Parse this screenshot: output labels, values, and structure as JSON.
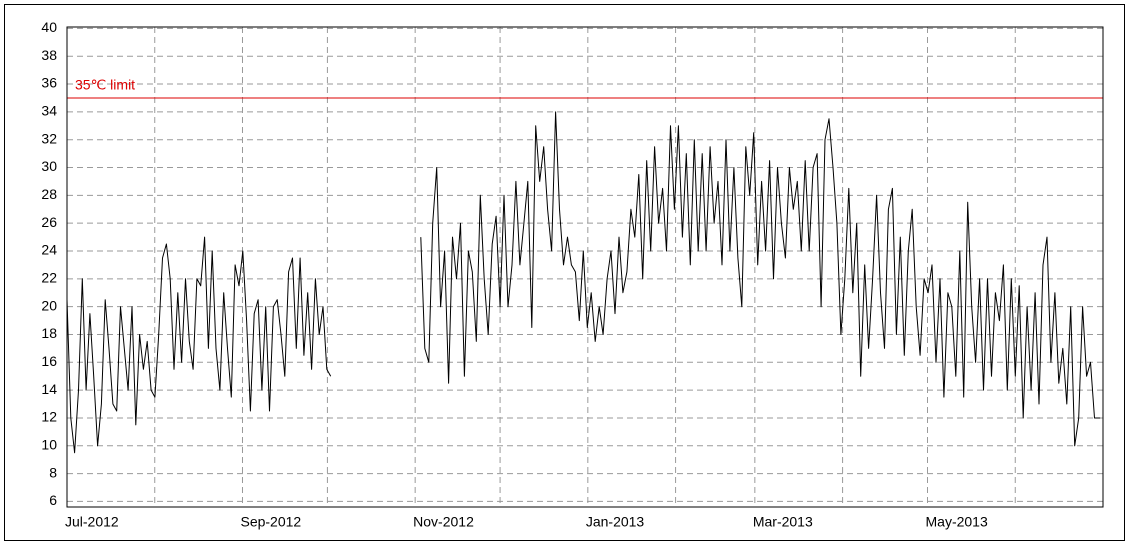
{
  "chart_data": {
    "type": "line",
    "color": "#000000",
    "limit": {
      "value": 35,
      "label": "35℃ limit",
      "color": "#dd0000"
    },
    "ylim": [
      5.6,
      40.1
    ],
    "yticks": [
      6,
      8,
      10,
      12,
      14,
      16,
      18,
      20,
      22,
      24,
      26,
      28,
      30,
      32,
      34,
      36,
      38,
      40
    ],
    "xlim": [
      0,
      366
    ],
    "xticks": [
      {
        "value": 0,
        "label": "Jul-2012"
      },
      {
        "value": 62,
        "label": "Sep-2012"
      },
      {
        "value": 123,
        "label": "Nov-2012"
      },
      {
        "value": 184,
        "label": "Jan-2013"
      },
      {
        "value": 243,
        "label": "Mar-2013"
      },
      {
        "value": 304,
        "label": "May-2013"
      }
    ],
    "xgrid": [
      31,
      92,
      153,
      215,
      274,
      335
    ],
    "grid": true,
    "x": [
      0,
      1.35,
      2.7,
      4.05,
      5.4,
      6.75,
      8.1,
      9.45,
      10.8,
      12.15,
      13.5,
      14.85,
      16.2,
      17.55,
      18.9,
      20.25,
      21.6,
      22.95,
      24.3,
      25.65,
      27,
      28.35,
      29.7,
      31.05,
      32.4,
      33.75,
      35.1,
      36.45,
      37.8,
      39.15,
      40.5,
      41.85,
      43.2,
      44.55,
      45.9,
      47.25,
      48.6,
      49.95,
      51.3,
      52.65,
      54,
      55.35,
      56.7,
      58.05,
      59.4,
      60.75,
      62.1,
      63.45,
      64.8,
      66.15,
      67.5,
      68.85,
      70.2,
      71.55,
      72.9,
      74.25,
      75.6,
      76.95,
      78.3,
      79.65,
      81,
      82.35,
      83.7,
      85.05,
      86.4,
      87.75,
      89.1,
      90.45,
      91.8,
      93.15,
      109,
      125,
      126.4,
      127.8,
      129.2,
      130.6,
      132,
      133.4,
      134.8,
      136.2,
      137.6,
      139,
      140.4,
      141.8,
      143.2,
      144.6,
      146,
      147.4,
      148.8,
      150.2,
      151.6,
      153,
      154.4,
      155.8,
      157.2,
      158.6,
      160,
      161.4,
      162.8,
      164.2,
      165.6,
      167,
      168.4,
      169.8,
      171.2,
      172.6,
      174,
      175.4,
      176.8,
      178.2,
      179.6,
      181,
      182.4,
      183.8,
      185.2,
      186.6,
      188,
      189.4,
      190.8,
      192.2,
      193.6,
      195,
      196.4,
      197.8,
      199.2,
      200.6,
      202,
      203.4,
      204.8,
      206.2,
      207.6,
      209,
      210.4,
      211.8,
      213.2,
      214.6,
      216,
      217.4,
      218.8,
      220.2,
      221.6,
      223,
      224.4,
      225.8,
      227.2,
      228.6,
      230,
      231.4,
      232.8,
      234.2,
      235.6,
      237,
      238.4,
      239.8,
      241.2,
      242.6,
      244,
      245.4,
      246.8,
      248.2,
      249.6,
      251,
      252.4,
      253.8,
      255.2,
      256.6,
      258,
      259.4,
      260.8,
      262.2,
      263.6,
      265,
      266.4,
      267.8,
      269.2,
      270.6,
      272,
      273.4,
      274.8,
      276.2,
      277.6,
      279,
      280.4,
      281.8,
      283.2,
      284.6,
      286,
      287.4,
      288.8,
      290.2,
      291.6,
      293,
      294.4,
      295.8,
      297.2,
      298.6,
      300,
      301.4,
      302.8,
      304.2,
      305.6,
      307,
      308.4,
      309.8,
      311.2,
      312.6,
      314,
      315.4,
      316.8,
      318.2,
      319.6,
      321,
      322.4,
      323.8,
      325.2,
      326.6,
      328,
      329.4,
      330.8,
      332.2,
      333.6,
      335,
      336.4,
      337.8,
      339.2,
      340.6,
      342,
      343.4,
      344.8,
      346.2,
      347.6,
      349,
      350.4,
      351.8,
      353.2,
      354.6,
      356,
      357.4,
      358.8,
      360.2,
      361.6,
      363,
      365
    ],
    "values": [
      20.5,
      12,
      9.5,
      14,
      22,
      14,
      19.5,
      15,
      10,
      13,
      20.5,
      17,
      13,
      12.5,
      20,
      17,
      14,
      20,
      11.5,
      18,
      15.5,
      17.5,
      14,
      13.5,
      18,
      23.5,
      24.5,
      22,
      15.5,
      21,
      16,
      22,
      17.5,
      15.5,
      22,
      21.5,
      25,
      17,
      24,
      17,
      14,
      21,
      17,
      13.5,
      23,
      21.5,
      24,
      19,
      12.5,
      19.5,
      20.5,
      14,
      20,
      12.5,
      20,
      20.5,
      18,
      15,
      22.5,
      23.5,
      17,
      23.5,
      16.5,
      21,
      15.5,
      22,
      18,
      20,
      15.5,
      15,
      null,
      25,
      17,
      16,
      26,
      30,
      20,
      24,
      14.5,
      25,
      22,
      26,
      15,
      24,
      22.5,
      17.5,
      28,
      22,
      18,
      24.5,
      26.5,
      20,
      28,
      20,
      23,
      29,
      23,
      26,
      29,
      18.5,
      33,
      29,
      31.5,
      27,
      24,
      34,
      27,
      23,
      25,
      23,
      22.5,
      19,
      24,
      18.5,
      21,
      17.5,
      20,
      18,
      22,
      24,
      19.5,
      25,
      21,
      22.5,
      27,
      25,
      29.5,
      22,
      30.5,
      24,
      31.5,
      26,
      28.5,
      24,
      33,
      27,
      33,
      25,
      31,
      23,
      32,
      24,
      31,
      24,
      31.5,
      26,
      29,
      23,
      32,
      24,
      30,
      23.5,
      20,
      31.5,
      28,
      32.5,
      23,
      29,
      24,
      30.5,
      22,
      30,
      26,
      23.5,
      30,
      27,
      29,
      24,
      30.5,
      24,
      30,
      31,
      20,
      32,
      33.5,
      30,
      26,
      18,
      22,
      28.5,
      21,
      26,
      15,
      23,
      17,
      22,
      28,
      21,
      17,
      27,
      28.5,
      18,
      25,
      16.5,
      24,
      27,
      20,
      16.5,
      22,
      21,
      23,
      16,
      22,
      13.5,
      21,
      20,
      15,
      24,
      13.5,
      27.5,
      20,
      16,
      22,
      14,
      22,
      15,
      21,
      19,
      23,
      14,
      22,
      15,
      21.5,
      12,
      20,
      14,
      21,
      13,
      23,
      25,
      16,
      21,
      14.5,
      17,
      13,
      20,
      10,
      12,
      20,
      15,
      16,
      12,
      12
    ]
  }
}
